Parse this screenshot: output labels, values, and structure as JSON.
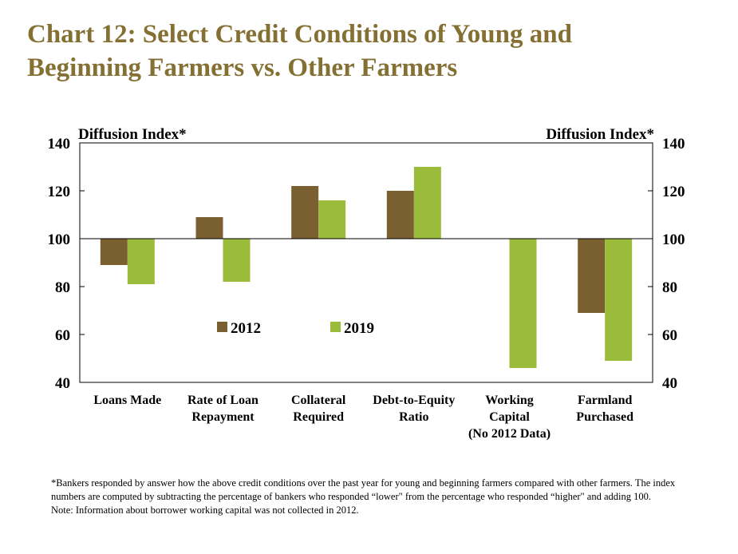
{
  "chart_data": {
    "type": "bar",
    "title_lines": [
      "Chart 12: Select Credit Conditions of Young and",
      "Beginning Farmers vs. Other Farmers"
    ],
    "ylabel_left": "Diffusion Index*",
    "ylabel_right": "Diffusion Index*",
    "ylim": [
      40,
      140
    ],
    "yticks": [
      40,
      60,
      80,
      100,
      120,
      140
    ],
    "baseline": 100,
    "categories": [
      [
        "Loans Made"
      ],
      [
        "Rate of Loan",
        "Repayment"
      ],
      [
        "Collateral",
        "Required"
      ],
      [
        "Debt-to-Equity",
        "Ratio"
      ],
      [
        "Working",
        "Capital",
        "(No 2012 Data)"
      ],
      [
        "Farmland",
        "Purchased"
      ]
    ],
    "series": [
      {
        "name": "2012",
        "color": "#7a5f30",
        "values": [
          89,
          109,
          122,
          120,
          null,
          69
        ]
      },
      {
        "name": "2019",
        "color": "#9bbb3b",
        "values": [
          81,
          82,
          116,
          130,
          46,
          49
        ]
      }
    ],
    "legend_position": "inside-center-left",
    "grid": false
  },
  "footnote": [
    "*Bankers responded by answer how the above credit conditions over the past year for young and beginning farmers compared with other farmers. The index numbers are computed by subtracting the percentage of bankers who responded “lower\" from the percentage who responded “higher\" and adding 100.",
    "Note: Information about borrower working capital was not collected in 2012."
  ]
}
